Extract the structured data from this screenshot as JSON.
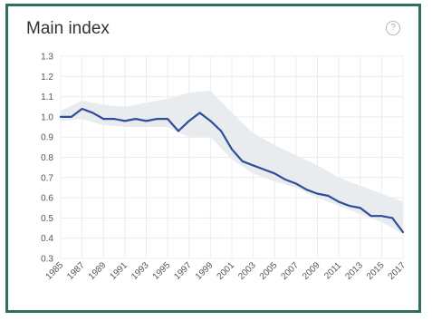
{
  "card": {
    "title": "Main index",
    "help_icon": "help-circle-icon",
    "help_symbol": "?"
  },
  "colors": {
    "border": "#2f6f5b",
    "line": "#2e4d9b",
    "band": "#e9ecee",
    "grid": "#ececec"
  },
  "chart_data": {
    "type": "line",
    "title": "Main index",
    "xlabel": "",
    "ylabel": "",
    "ylim": [
      0.3,
      1.3
    ],
    "yticks": [
      0.3,
      0.4,
      0.5,
      0.6,
      0.7,
      0.8,
      0.9,
      1.0,
      1.1,
      1.2,
      1.3
    ],
    "ytick_labels": [
      "0.3",
      "0.4",
      "0.5",
      "0.6",
      "0.7",
      "0.8",
      "0.9",
      "1.0",
      "1.1",
      "1.2",
      "1.3"
    ],
    "xlim": [
      1985,
      2017
    ],
    "xtick_labels": [
      "1985",
      "1987",
      "1989",
      "1991",
      "1993",
      "1995",
      "1997",
      "1999",
      "2001",
      "2003",
      "2005",
      "2007",
      "2009",
      "2011",
      "2013",
      "2015",
      "2017"
    ],
    "grid": true,
    "series": [
      {
        "x": [
          1985,
          1986,
          1987,
          1988,
          1989,
          1990,
          1991,
          1992,
          1993,
          1994,
          1995,
          1996,
          1997,
          1998,
          1999,
          2000,
          2001,
          2002,
          2003,
          2004,
          2005,
          2006,
          2007,
          2008,
          2009,
          2010,
          2011,
          2012,
          2013,
          2014,
          2015,
          2016,
          2017
        ],
        "values": [
          1.0,
          1.0,
          1.04,
          1.02,
          0.99,
          0.99,
          0.98,
          0.99,
          0.98,
          0.99,
          0.99,
          0.93,
          0.98,
          1.02,
          0.98,
          0.93,
          0.84,
          0.78,
          0.76,
          0.74,
          0.72,
          0.69,
          0.67,
          0.64,
          0.62,
          0.61,
          0.58,
          0.56,
          0.55,
          0.51,
          0.51,
          0.5,
          0.43
        ]
      }
    ],
    "uncertainty_band": {
      "x": [
        1985,
        1987,
        1989,
        1991,
        1993,
        1995,
        1997,
        1999,
        2001,
        2003,
        2005,
        2007,
        2009,
        2011,
        2013,
        2015,
        2017
      ],
      "upper": [
        1.03,
        1.08,
        1.06,
        1.05,
        1.07,
        1.09,
        1.12,
        1.13,
        1.02,
        0.92,
        0.86,
        0.81,
        0.76,
        0.7,
        0.66,
        0.62,
        0.58
      ],
      "lower": [
        0.98,
        0.99,
        0.96,
        0.95,
        0.95,
        0.95,
        0.9,
        0.9,
        0.79,
        0.72,
        0.68,
        0.65,
        0.6,
        0.56,
        0.52,
        0.48,
        0.42
      ]
    }
  }
}
